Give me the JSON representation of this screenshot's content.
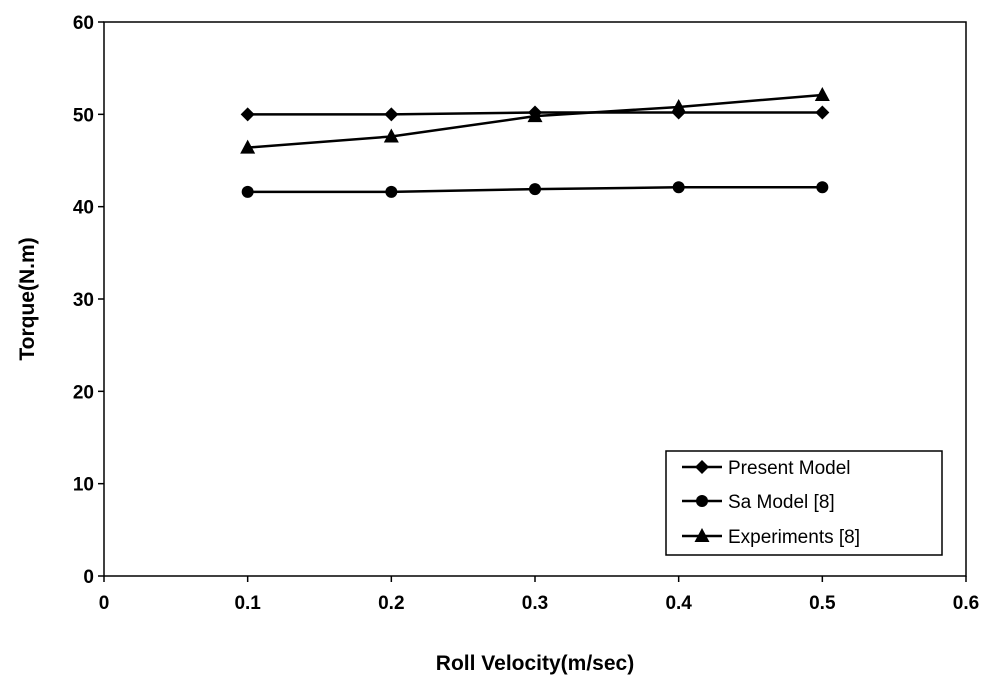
{
  "chart_data": {
    "type": "line",
    "title": "",
    "xlabel": "Roll Velocity(m/sec)",
    "ylabel": "Torque(N.m)",
    "xlim": [
      0,
      0.6
    ],
    "ylim": [
      0,
      60
    ],
    "x_ticks": [
      "0",
      "0.1",
      "0.2",
      "0.3",
      "0.4",
      "0.5",
      "0.6"
    ],
    "y_ticks": [
      "0",
      "10",
      "20",
      "30",
      "40",
      "50",
      "60"
    ],
    "grid": false,
    "legend_position": "bottom-right",
    "x": [
      0.1,
      0.2,
      0.3,
      0.4,
      0.5
    ],
    "series": [
      {
        "name": "Present Model",
        "marker": "diamond",
        "color": "#000000",
        "values": [
          50.0,
          50.0,
          50.2,
          50.2,
          50.2
        ]
      },
      {
        "name": "Sa Model [8]",
        "marker": "circle",
        "color": "#000000",
        "values": [
          41.6,
          41.6,
          41.9,
          42.1,
          42.1
        ]
      },
      {
        "name": "Experiments [8]",
        "marker": "triangle",
        "color": "#000000",
        "values": [
          46.4,
          47.6,
          49.8,
          50.8,
          52.1
        ]
      }
    ]
  }
}
